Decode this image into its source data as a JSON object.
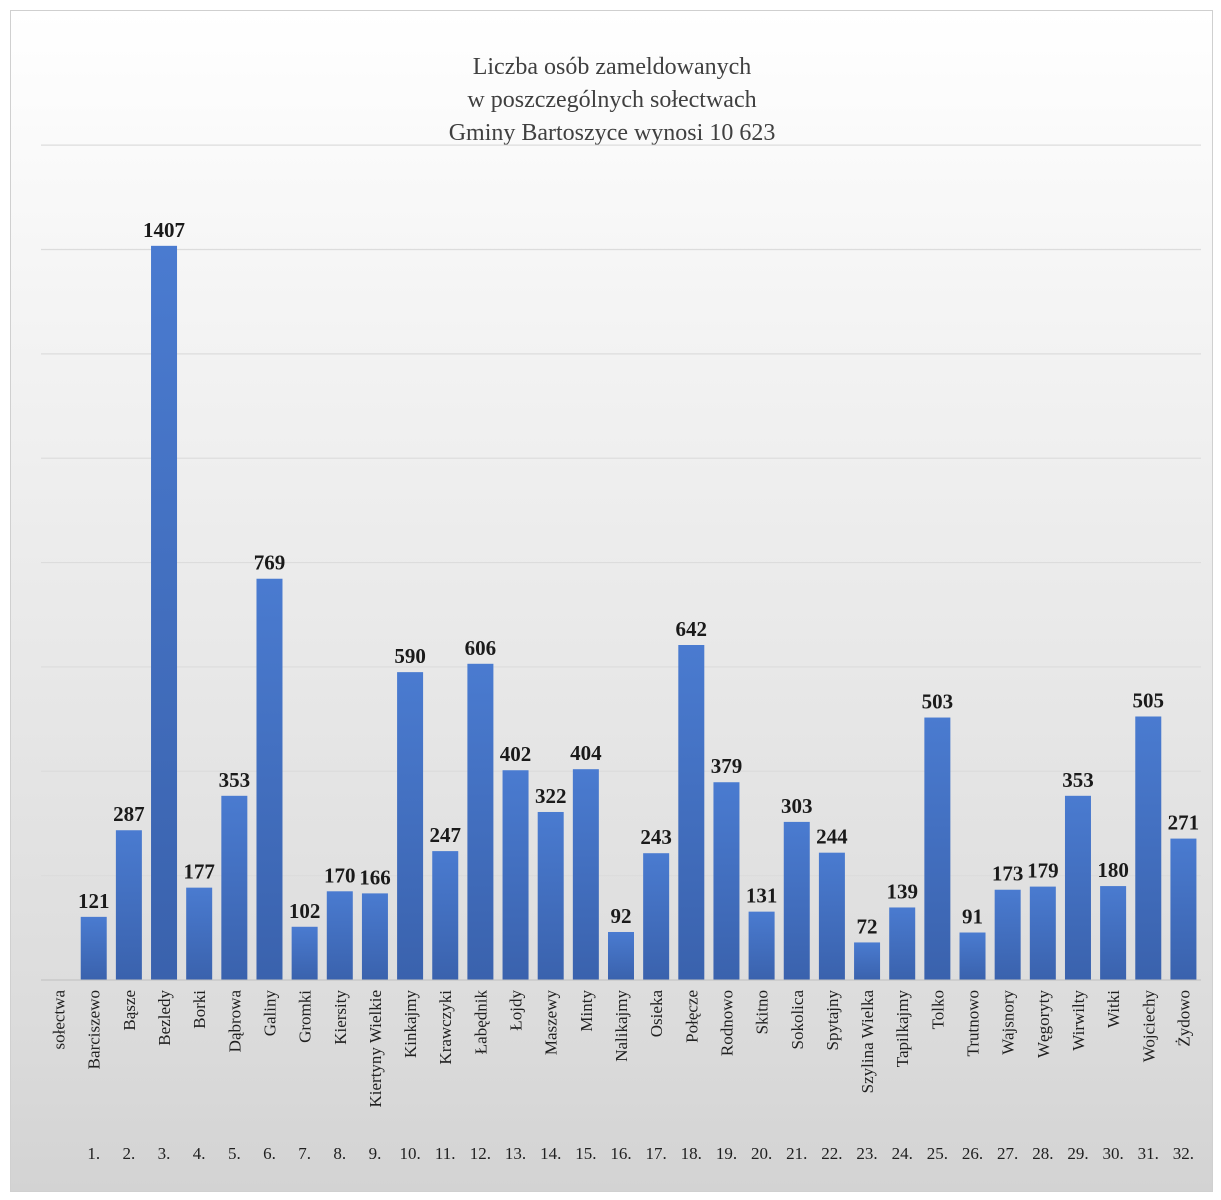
{
  "chart_data": {
    "type": "bar",
    "title_lines": [
      "Liczba osób zameldowanych",
      "w poszczególnych sołectwach",
      "Gminy Bartoszyce wynosi 10 623"
    ],
    "categories": [
      "sołectwa",
      "Barciszewo",
      "Bąsze",
      "Bezledy",
      "Borki",
      "Dąbrowa",
      "Galiny",
      "Gromki",
      "Kiersity",
      "Kiertyny Wielkie",
      "Kinkajmy",
      "Krawczyki",
      "Łabędnik",
      "Łojdy",
      "Maszewy",
      "Minty",
      "Nalikajmy",
      "Osieka",
      "Połęcze",
      "Rodnowo",
      "Skitno",
      "Sokolica",
      "Spytajny",
      "Szylina Wielka",
      "Tapilkajmy",
      "Tolko",
      "Trutnowo",
      "Wajsnory",
      "Węgoryty",
      "Wirwilty",
      "Witki",
      "Wojciechy",
      "Żydowo"
    ],
    "values": [
      null,
      121,
      287,
      1407,
      177,
      353,
      769,
      102,
      170,
      166,
      590,
      247,
      606,
      402,
      322,
      404,
      92,
      243,
      642,
      379,
      131,
      303,
      244,
      72,
      139,
      503,
      91,
      173,
      179,
      353,
      180,
      505,
      271
    ],
    "data_labels": [
      "",
      "121",
      "287",
      "1407",
      "177",
      "353",
      "769",
      "102",
      "170",
      "166",
      "590",
      "247",
      "606",
      "402",
      "322",
      "404",
      "92",
      "243",
      "642",
      "379",
      "131",
      "303",
      "244",
      "72",
      "139",
      "503",
      "91",
      "173",
      "179",
      "353",
      "180",
      "505",
      "271"
    ],
    "numbers": [
      "1.",
      "2.",
      "3.",
      "4.",
      "5.",
      "6.",
      "7.",
      "8.",
      "9.",
      "10.",
      "11.",
      "12.",
      "13.",
      "14.",
      "15.",
      "16.",
      "17.",
      "18.",
      "19.",
      "20.",
      "21.",
      "22.",
      "23.",
      "24.",
      "25.",
      "26.",
      "27.",
      "28.",
      "29.",
      "30.",
      "31.",
      "32."
    ],
    "ylim": [
      0,
      1600
    ],
    "grid": true,
    "xlabel": "",
    "ylabel": "",
    "bar_color": "#4472C4"
  }
}
